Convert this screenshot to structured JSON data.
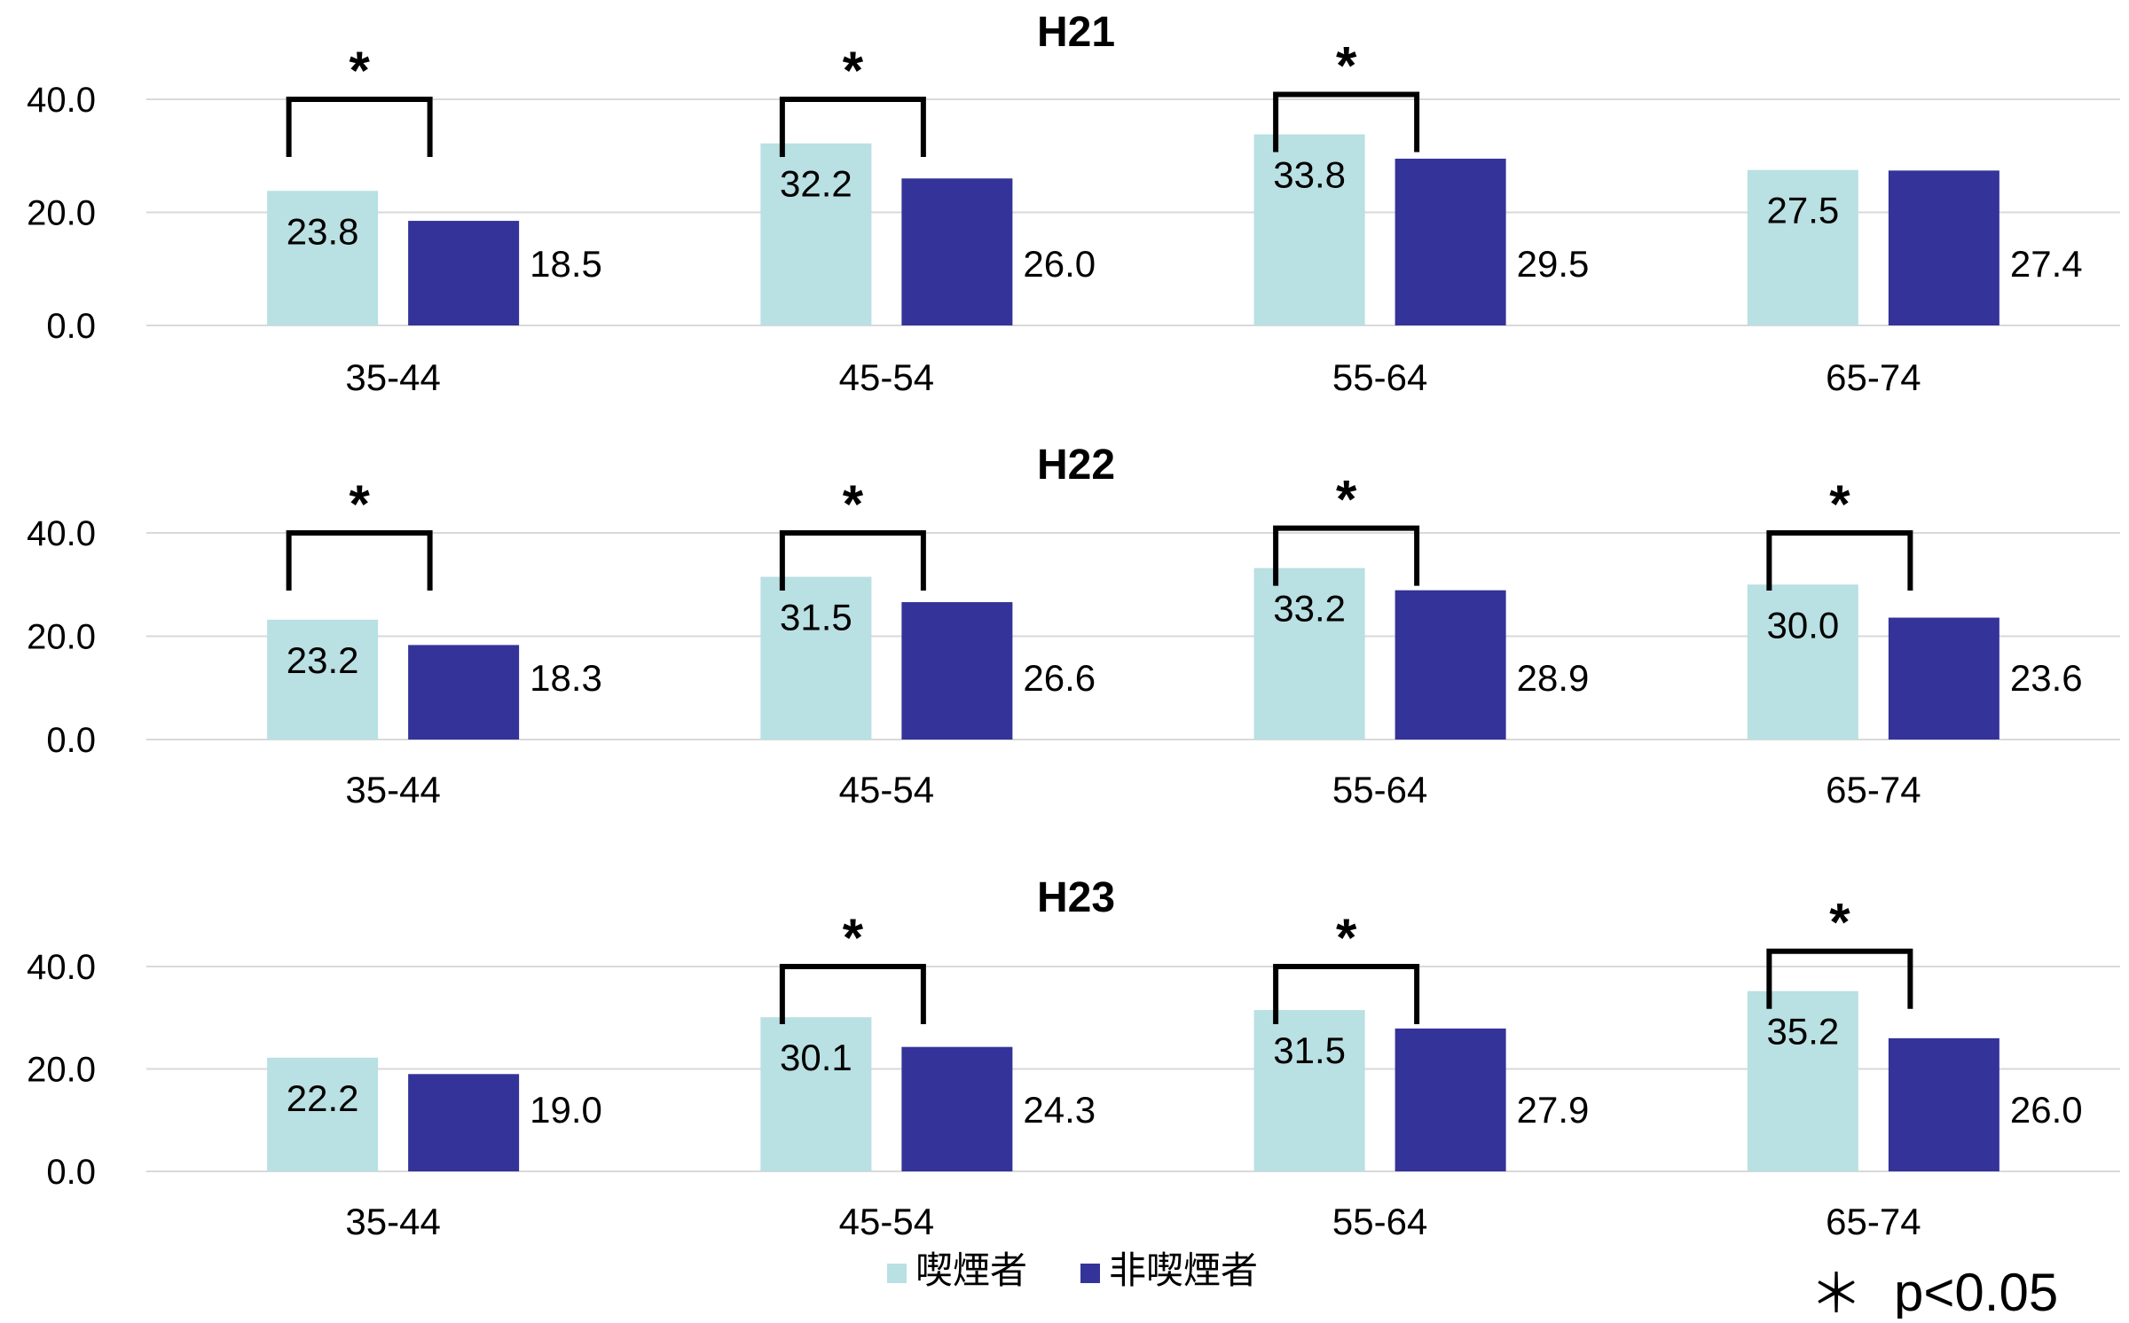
{
  "colors": {
    "smoker": "#B9E0E2",
    "nonsmoker": "#343399",
    "grid": "#D9D9D9",
    "text": "#000000"
  },
  "legend": {
    "smoker": "喫煙者",
    "nonsmoker": "非喫煙者",
    "placement": "bottom-center"
  },
  "footnote": {
    "star": "＊",
    "text": "p<0.05"
  },
  "chart_data": [
    {
      "type": "bar",
      "title": "H21",
      "categories": [
        "35-44",
        "45-54",
        "55-64",
        "65-74"
      ],
      "series": [
        {
          "name": "喫煙者",
          "values": [
            23.8,
            32.2,
            33.8,
            27.5
          ]
        },
        {
          "name": "非喫煙者",
          "values": [
            18.5,
            26.0,
            29.5,
            27.4
          ]
        }
      ],
      "value_labels": [
        [
          "23.8",
          "32.2",
          "33.8",
          "27.5"
        ],
        [
          "18.5",
          "26.0",
          "29.5",
          "27.4"
        ]
      ],
      "significant": [
        true,
        true,
        true,
        false
      ],
      "yticks": [
        "0.0",
        "20.0",
        "40.0"
      ],
      "ylim": [
        0,
        40
      ],
      "grid": true
    },
    {
      "type": "bar",
      "title": "H22",
      "categories": [
        "35-44",
        "45-54",
        "55-64",
        "65-74"
      ],
      "series": [
        {
          "name": "喫煙者",
          "values": [
            23.2,
            31.5,
            33.2,
            30.0
          ]
        },
        {
          "name": "非喫煙者",
          "values": [
            18.3,
            26.6,
            28.9,
            23.6
          ]
        }
      ],
      "value_labels": [
        [
          "23.2",
          "31.5",
          "33.2",
          "30.0"
        ],
        [
          "18.3",
          "26.6",
          "28.9",
          "23.6"
        ]
      ],
      "significant": [
        true,
        true,
        true,
        true
      ],
      "yticks": [
        "0.0",
        "20.0",
        "40.0"
      ],
      "ylim": [
        0,
        40
      ],
      "grid": true
    },
    {
      "type": "bar",
      "title": "H23",
      "categories": [
        "35-44",
        "45-54",
        "55-64",
        "65-74"
      ],
      "series": [
        {
          "name": "喫煙者",
          "values": [
            22.2,
            30.1,
            31.5,
            35.2
          ]
        },
        {
          "name": "非喫煙者",
          "values": [
            19.0,
            24.3,
            27.9,
            26.0
          ]
        }
      ],
      "value_labels": [
        [
          "22.2",
          "30.1",
          "31.5",
          "35.2"
        ],
        [
          "19.0",
          "24.3",
          "27.9",
          "26.0"
        ]
      ],
      "significant": [
        false,
        true,
        true,
        true
      ],
      "yticks": [
        "0.0",
        "20.0",
        "40.0"
      ],
      "ylim": [
        0,
        40
      ],
      "grid": true
    }
  ]
}
